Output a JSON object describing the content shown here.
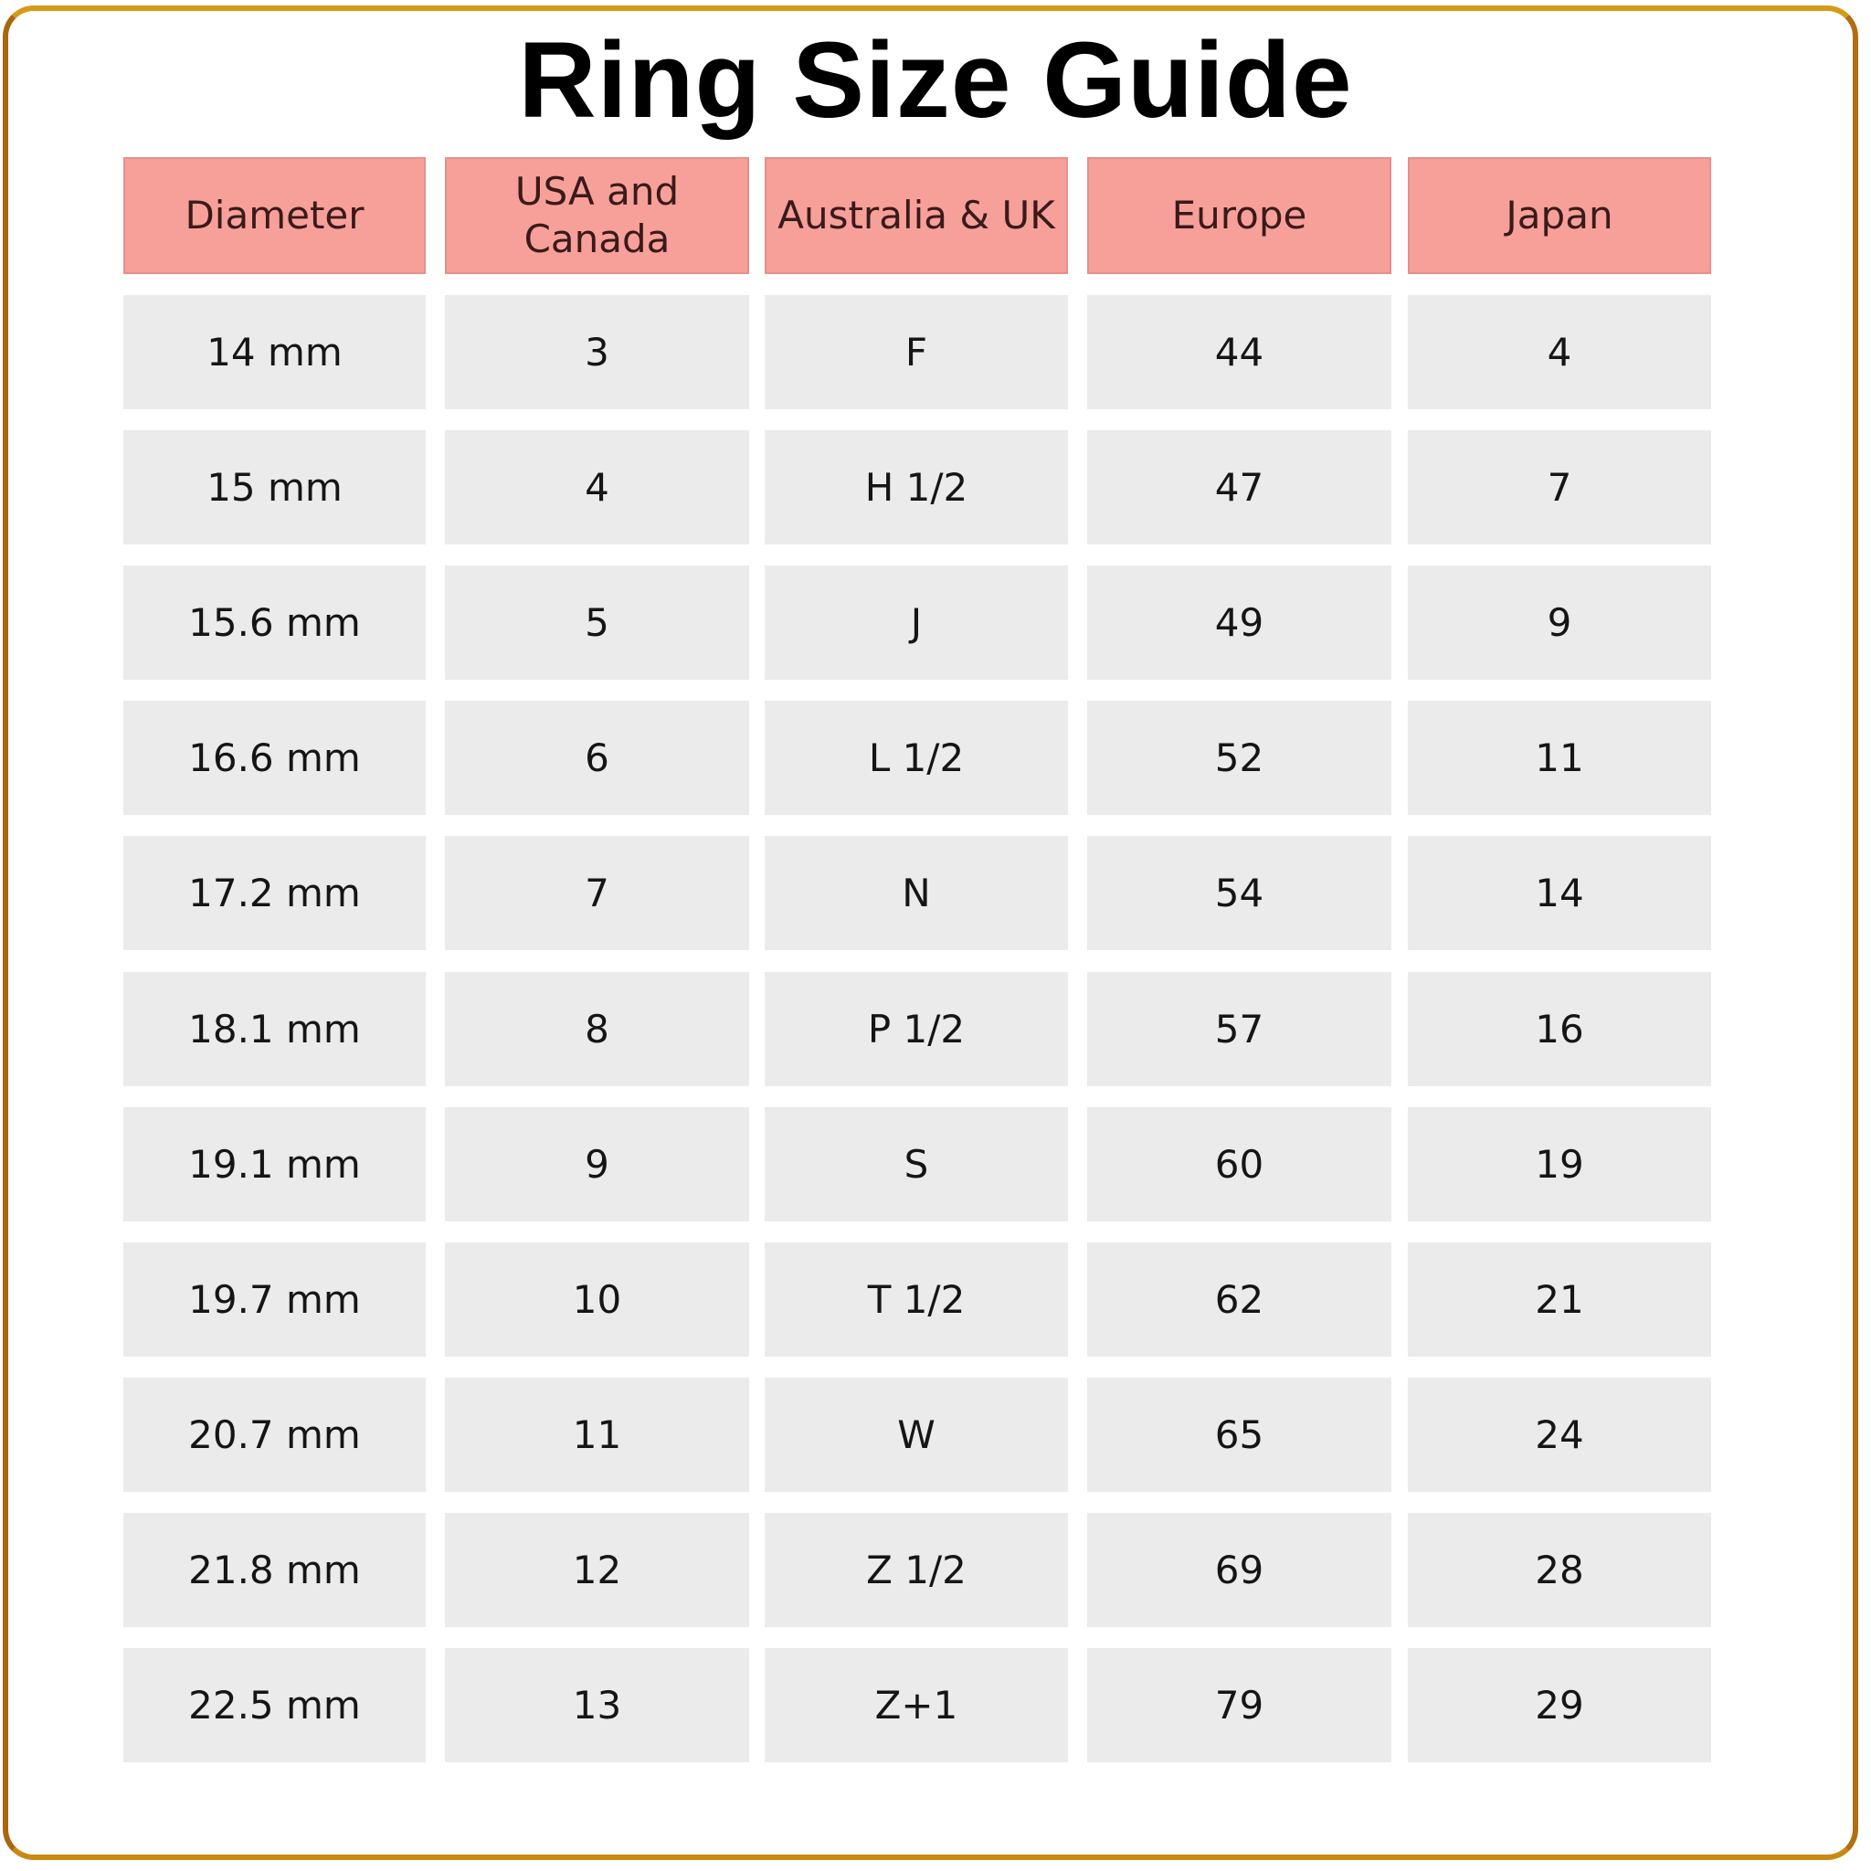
{
  "title": "Ring Size Guide",
  "colors": {
    "header_bg": "#f7a099",
    "cell_bg": "#ebebeb",
    "frame": "#c28a1e"
  },
  "table": {
    "headers": [
      "Diameter",
      "USA and Canada",
      "Australia & UK",
      "Europe",
      "Japan"
    ],
    "rows": [
      [
        "14 mm",
        "3",
        "F",
        "44",
        "4"
      ],
      [
        "15 mm",
        "4",
        "H 1/2",
        "47",
        "7"
      ],
      [
        "15.6 mm",
        "5",
        "J",
        "49",
        "9"
      ],
      [
        "16.6 mm",
        "6",
        "L 1/2",
        "52",
        "11"
      ],
      [
        "17.2 mm",
        "7",
        "N",
        "54",
        "14"
      ],
      [
        "18.1 mm",
        "8",
        "P 1/2",
        "57",
        "16"
      ],
      [
        "19.1 mm",
        "9",
        "S",
        "60",
        "19"
      ],
      [
        "19.7 mm",
        "10",
        "T 1/2",
        "62",
        "21"
      ],
      [
        "20.7 mm",
        "11",
        "W",
        "65",
        "24"
      ],
      [
        "21.8 mm",
        "12",
        "Z 1/2",
        "69",
        "28"
      ],
      [
        "22.5 mm",
        "13",
        "Z+1",
        "79",
        "29"
      ]
    ]
  }
}
